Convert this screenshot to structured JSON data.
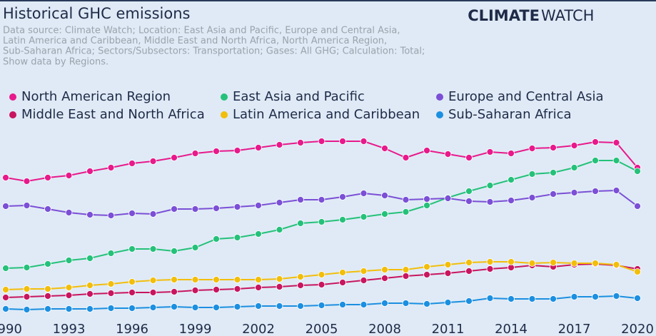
{
  "chart_data": {
    "type": "line",
    "title": "Historical GHC emissions",
    "subtitle": [
      "Data source: Climate Watch; Location: East Asia and Pacific, Europe and Central Asia,",
      "Latin America and Caribbean, Middle East and North Africa, North America Region,",
      "Sub-Saharan Africa; Sectors/Subsectors: Transportation; Gases: All GHG; Calculation: Total;",
      "Show data by Regions."
    ],
    "brand": [
      "CLIMATE",
      "WATCH"
    ],
    "x": [
      1990,
      1991,
      1992,
      1993,
      1994,
      1995,
      1996,
      1997,
      1998,
      1999,
      2000,
      2001,
      2002,
      2003,
      2004,
      2005,
      2006,
      2007,
      2008,
      2009,
      2010,
      2011,
      2012,
      2013,
      2014,
      2015,
      2016,
      2017,
      2018,
      2019,
      2020
    ],
    "xlim": [
      1990,
      2020
    ],
    "xticks": [
      1990,
      1993,
      1996,
      1999,
      2002,
      2005,
      2008,
      2011,
      2014,
      2017,
      2020
    ],
    "ylim": [
      0,
      2160
    ],
    "series": [
      {
        "name": "North American Region",
        "color": "#e8198b",
        "values": [
          1608,
          1568,
          1608,
          1632,
          1680,
          1720,
          1768,
          1792,
          1832,
          1880,
          1904,
          1912,
          1944,
          1976,
          2000,
          2016,
          2016,
          2016,
          1936,
          1832,
          1912,
          1872,
          1832,
          1896,
          1880,
          1936,
          1944,
          1968,
          2008,
          2000,
          1720
        ]
      },
      {
        "name": "East Asia and Pacific",
        "color": "#25c17a",
        "values": [
          592,
          600,
          640,
          680,
          704,
          760,
          808,
          808,
          784,
          824,
          920,
          936,
          976,
          1024,
          1096,
          1112,
          1136,
          1168,
          1200,
          1224,
          1296,
          1384,
          1456,
          1520,
          1584,
          1648,
          1664,
          1720,
          1800,
          1800,
          1680
        ]
      },
      {
        "name": "Europe and Central Asia",
        "color": "#7b4fd6",
        "values": [
          1288,
          1296,
          1256,
          1216,
          1192,
          1184,
          1208,
          1200,
          1256,
          1256,
          1264,
          1280,
          1296,
          1328,
          1360,
          1360,
          1392,
          1432,
          1408,
          1360,
          1368,
          1376,
          1344,
          1336,
          1352,
          1384,
          1424,
          1440,
          1456,
          1464,
          1288
        ]
      },
      {
        "name": "Middle East and North Africa",
        "color": "#c8155f",
        "values": [
          264,
          272,
          280,
          288,
          304,
          312,
          320,
          320,
          328,
          344,
          352,
          360,
          376,
          384,
          400,
          408,
          432,
          456,
          480,
          504,
          520,
          536,
          560,
          584,
          600,
          624,
          608,
          632,
          640,
          624,
          584
        ]
      },
      {
        "name": "Latin America and Caribbean",
        "color": "#f2be0c",
        "values": [
          352,
          360,
          360,
          376,
          400,
          416,
          440,
          456,
          464,
          464,
          464,
          464,
          464,
          472,
          496,
          520,
          544,
          560,
          576,
          576,
          608,
          632,
          656,
          664,
          664,
          648,
          656,
          648,
          648,
          632,
          552
        ]
      },
      {
        "name": "Sub-Saharan Africa",
        "color": "#1b8fe0",
        "values": [
          136,
          128,
          136,
          136,
          136,
          144,
          144,
          152,
          160,
          152,
          152,
          160,
          168,
          168,
          168,
          176,
          184,
          184,
          200,
          200,
          192,
          208,
          224,
          256,
          248,
          248,
          248,
          272,
          272,
          280,
          256
        ]
      }
    ]
  }
}
